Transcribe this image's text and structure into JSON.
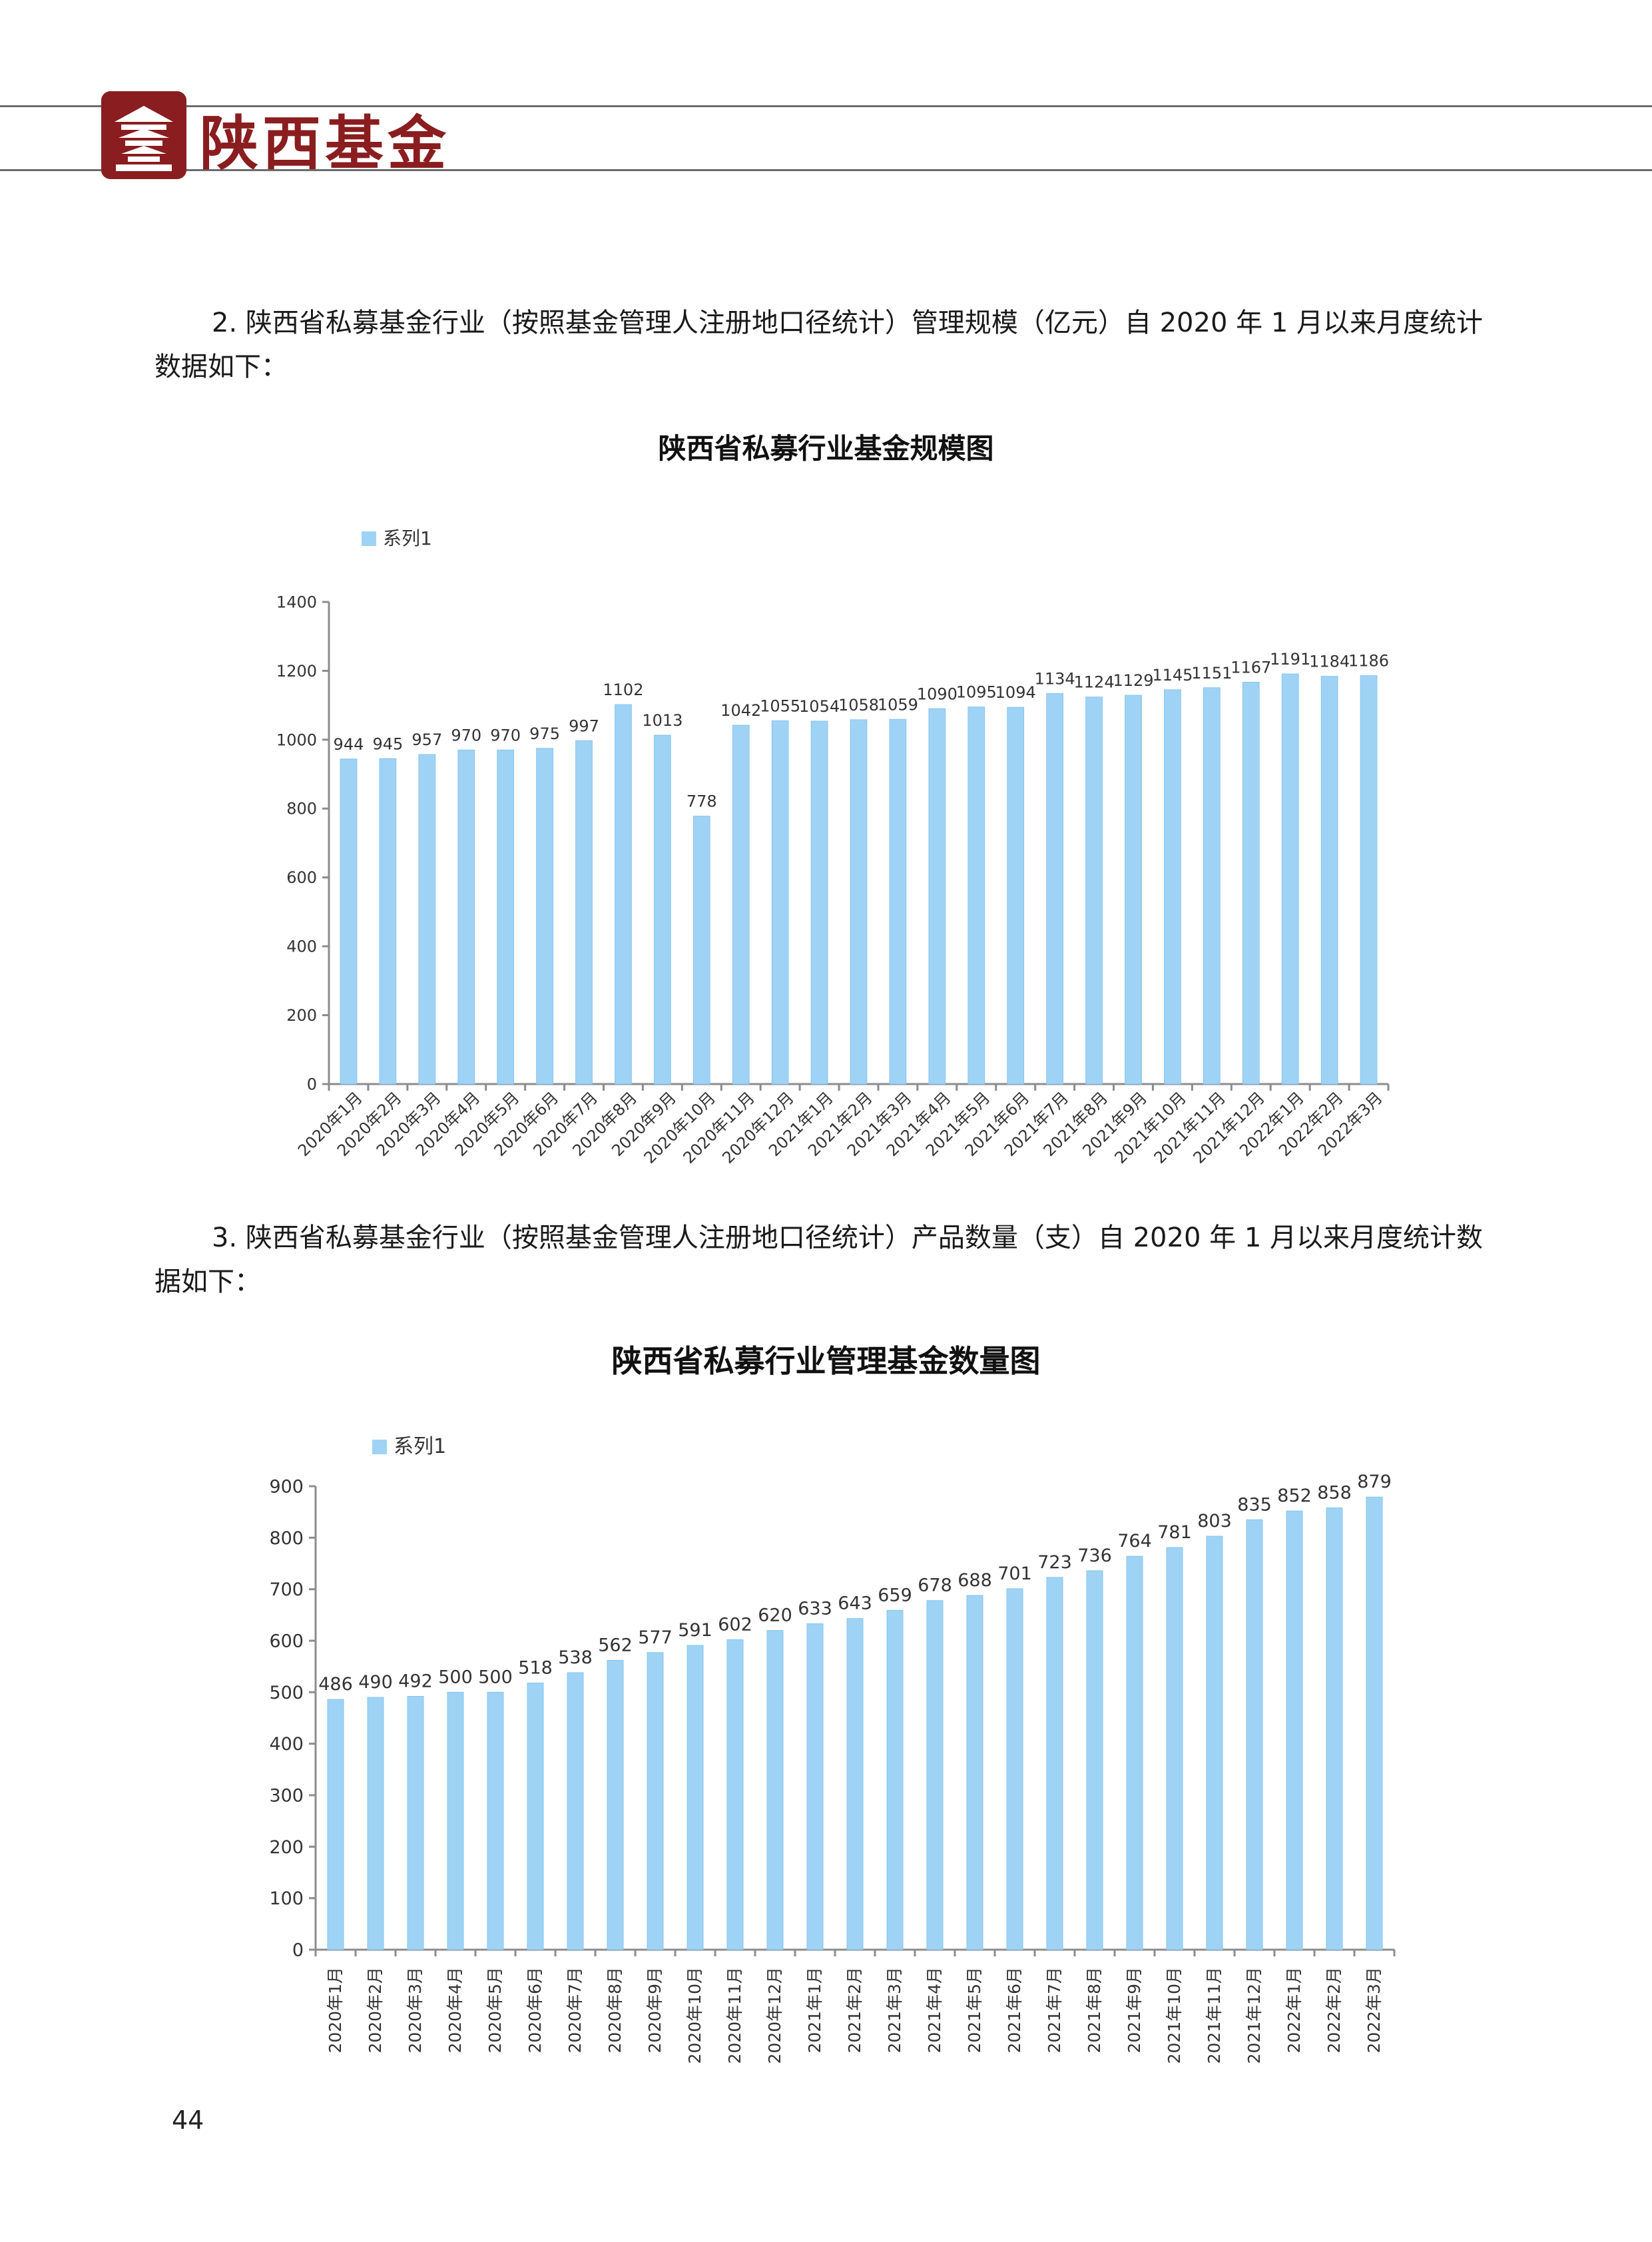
{
  "header": {
    "brand_name": "陕西基金",
    "logo_alt": "陕西基金 logo"
  },
  "paragraphs": {
    "p1": "2. 陕西省私募基金行业（按照基金管理人注册地口径统计）管理规模（亿元）自 2020 年 1 月以来月度统计数据如下：",
    "p2": "3. 陕西省私募基金行业（按照基金管理人注册地口径统计）产品数量（支）自 2020 年 1 月以来月度统计数据如下："
  },
  "colors": {
    "bar": "#9fd3f5",
    "bar_edge": "#86c4ee",
    "axis": "#8c8c8c",
    "brand": "#8a1d1f"
  },
  "chart_data": [
    {
      "type": "bar",
      "title": "陕西省私募行业基金规模图",
      "legend": "系列1",
      "legend_position": "top-left",
      "ylim": [
        0,
        1400
      ],
      "yticks": [
        0,
        200,
        400,
        600,
        800,
        1000,
        1200,
        1400
      ],
      "grid": false,
      "categories": [
        "2020年1月",
        "2020年2月",
        "2020年3月",
        "2020年4月",
        "2020年5月",
        "2020年6月",
        "2020年7月",
        "2020年8月",
        "2020年9月",
        "2020年10月",
        "2020年11月",
        "2020年12月",
        "2021年1月",
        "2021年2月",
        "2021年3月",
        "2021年4月",
        "2021年5月",
        "2021年6月",
        "2021年7月",
        "2021年8月",
        "2021年9月",
        "2021年10月",
        "2021年11月",
        "2021年12月",
        "2022年1月",
        "2022年2月",
        "2022年3月"
      ],
      "series": [
        {
          "name": "系列1",
          "values": [
            944,
            945,
            957,
            970,
            970,
            975,
            997,
            1102,
            1013,
            778,
            1042,
            1055,
            1054,
            1058,
            1059,
            1090,
            1095,
            1094,
            1134,
            1124,
            1129,
            1145,
            1151,
            1167,
            1191,
            1184,
            1186
          ]
        }
      ]
    },
    {
      "type": "bar",
      "title": "陕西省私募行业管理基金数量图",
      "legend": "系列1",
      "legend_position": "top-left",
      "ylim": [
        0,
        900
      ],
      "yticks": [
        0,
        100,
        200,
        300,
        400,
        500,
        600,
        700,
        800,
        900
      ],
      "grid": false,
      "categories": [
        "2020年1月",
        "2020年2月",
        "2020年3月",
        "2020年4月",
        "2020年5月",
        "2020年6月",
        "2020年7月",
        "2020年8月",
        "2020年9月",
        "2020年10月",
        "2020年11月",
        "2020年12月",
        "2021年1月",
        "2021年2月",
        "2021年3月",
        "2021年4月",
        "2021年5月",
        "2021年6月",
        "2021年7月",
        "2021年8月",
        "2021年9月",
        "2021年10月",
        "2021年11月",
        "2021年12月",
        "2022年1月",
        "2022年2月",
        "2022年3月"
      ],
      "series": [
        {
          "name": "系列1",
          "values": [
            486,
            490,
            492,
            500,
            500,
            518,
            538,
            562,
            577,
            591,
            602,
            620,
            633,
            643,
            659,
            678,
            688,
            701,
            723,
            736,
            764,
            781,
            803,
            835,
            852,
            858,
            879
          ]
        }
      ]
    }
  ],
  "footer": {
    "page_number": "44"
  }
}
